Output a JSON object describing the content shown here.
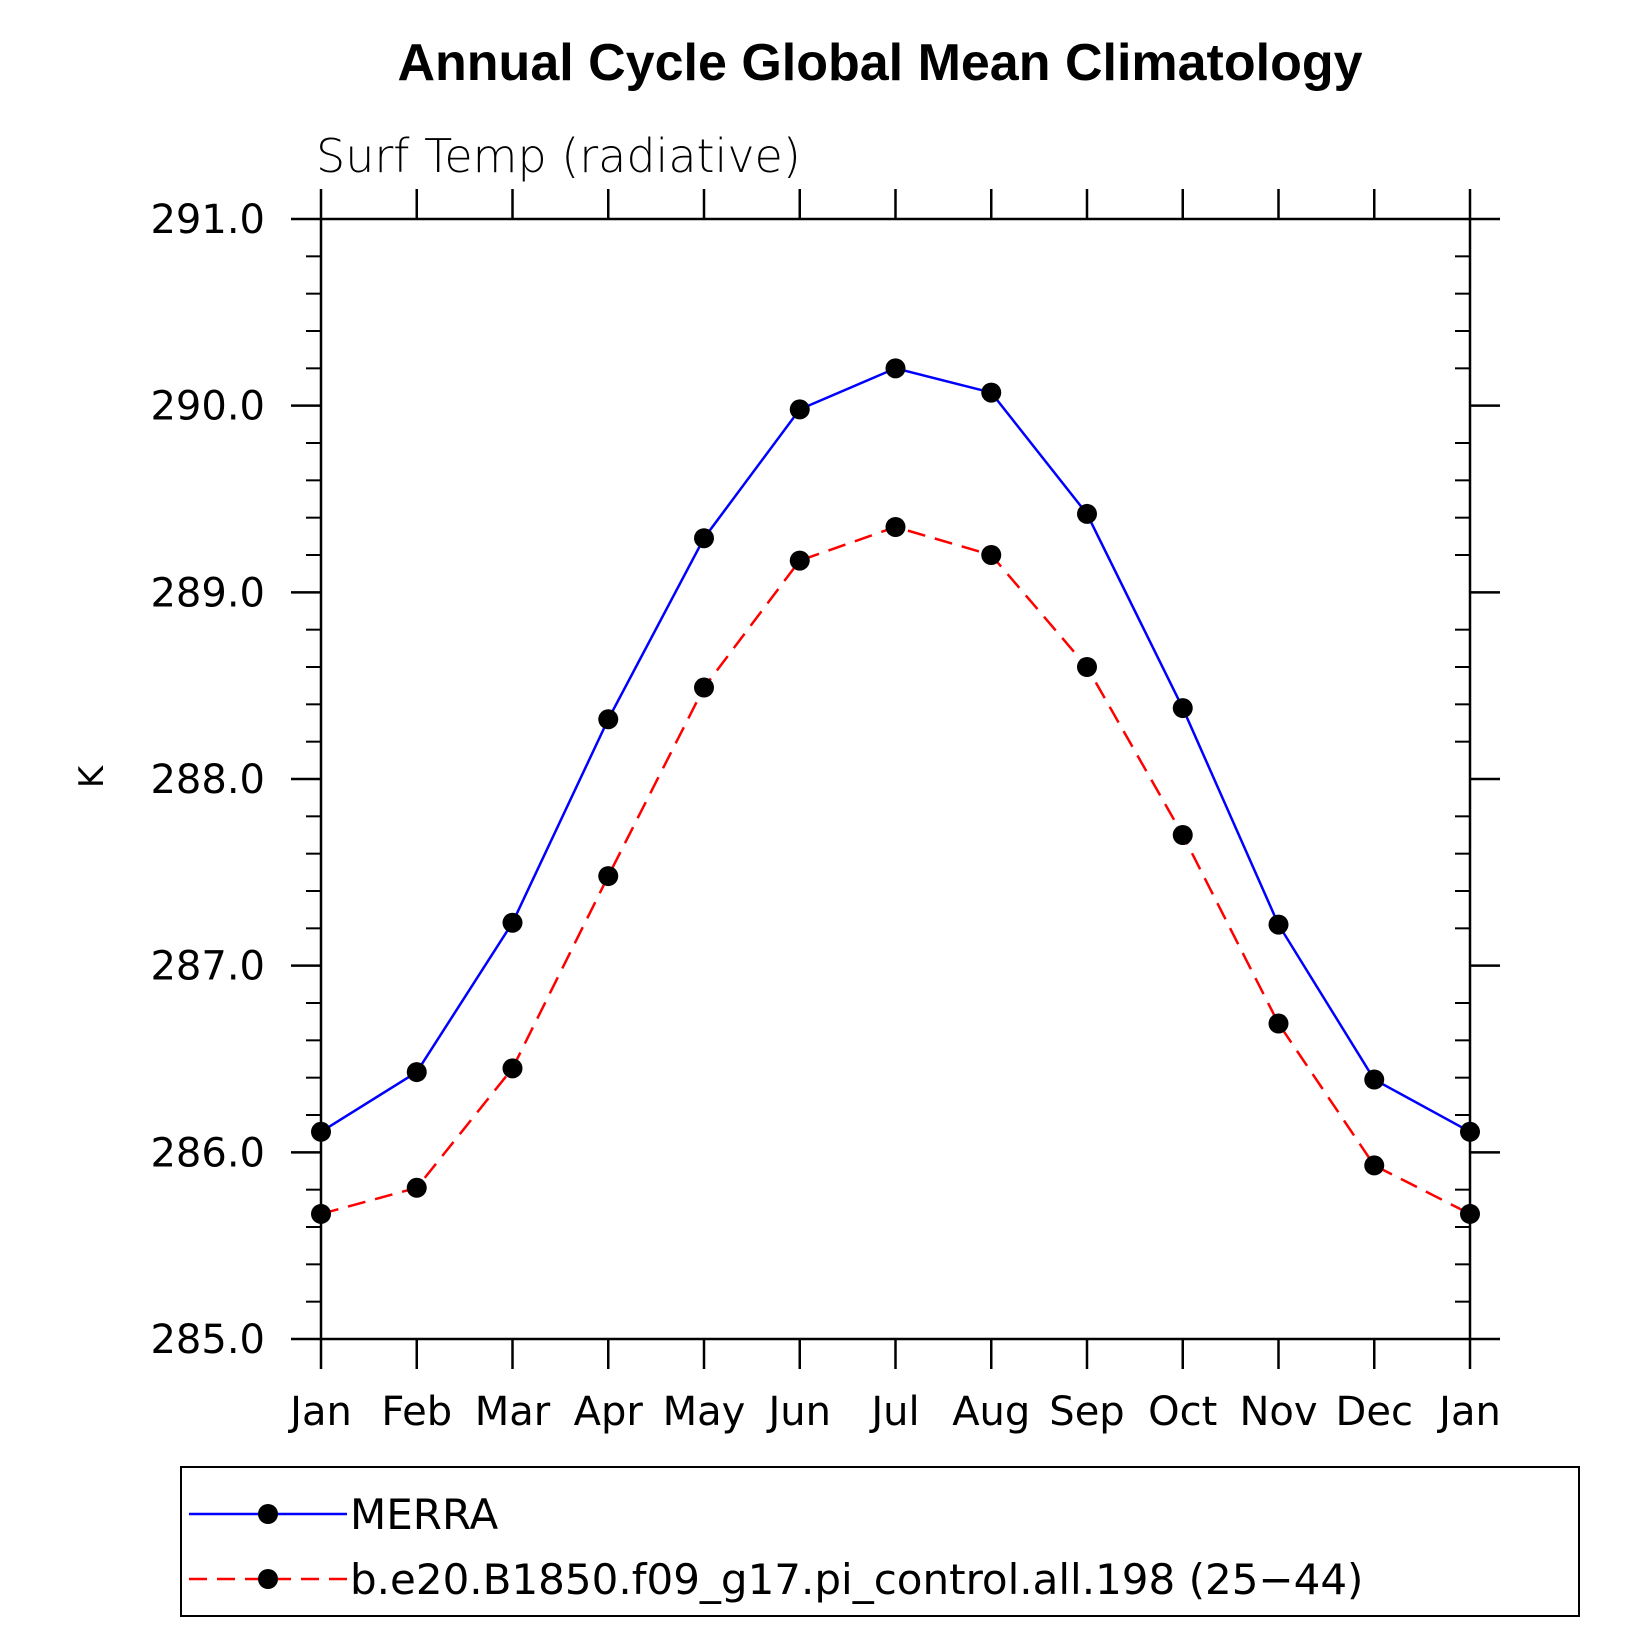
{
  "chart_data": {
    "type": "line",
    "title": "Annual Cycle Global Mean Climatology",
    "subtitle": "Surf Temp (radiative)",
    "xlabel": "",
    "ylabel": "K",
    "ylim": [
      285.0,
      291.0
    ],
    "yticks": [
      285.0,
      286.0,
      287.0,
      288.0,
      289.0,
      290.0,
      291.0
    ],
    "ytick_labels": [
      "285.0",
      "286.0",
      "287.0",
      "288.0",
      "289.0",
      "290.0",
      "291.0"
    ],
    "y_minor_step": 0.2,
    "categories": [
      "Jan",
      "Feb",
      "Mar",
      "Apr",
      "May",
      "Jun",
      "Jul",
      "Aug",
      "Sep",
      "Oct",
      "Nov",
      "Dec",
      "Jan"
    ],
    "grid": false,
    "legend_position": "bottom",
    "series": [
      {
        "name": "MERRA",
        "color": "#0000ff",
        "dash": "solid",
        "marker": "circle",
        "values": [
          286.11,
          286.43,
          287.23,
          288.32,
          289.29,
          289.98,
          290.2,
          290.07,
          289.42,
          288.38,
          287.22,
          286.39,
          286.11
        ]
      },
      {
        "name": "b.e20.B1850.f09_g17.pi_control.all.198 (25−44)",
        "color": "#ff0000",
        "dash": "dashed",
        "marker": "circle",
        "values": [
          285.67,
          285.81,
          286.45,
          287.48,
          288.49,
          289.17,
          289.35,
          289.2,
          288.6,
          287.7,
          286.69,
          285.93,
          285.67
        ]
      }
    ]
  }
}
